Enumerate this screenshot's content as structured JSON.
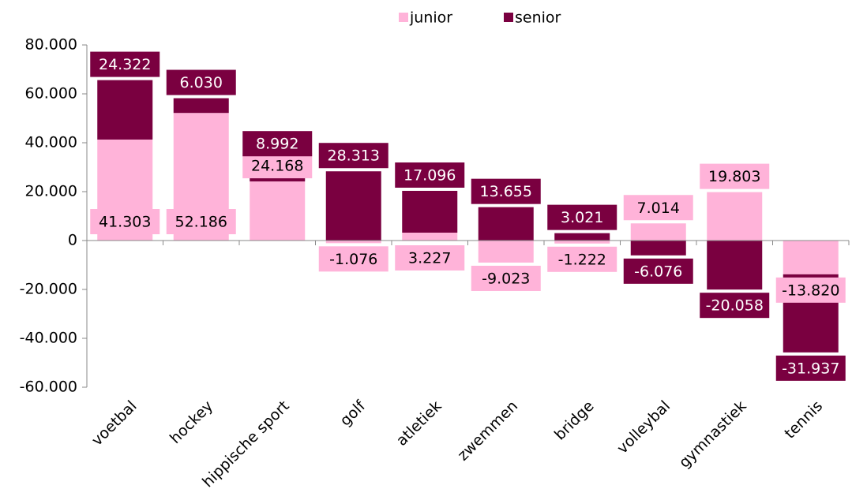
{
  "chart_data": {
    "type": "bar",
    "stacked": true,
    "categories": [
      "voetbal",
      "hockey",
      "hippische sport",
      "golf",
      "atletiek",
      "zwemmen",
      "bridge",
      "volleybal",
      "gymnastiek",
      "tennis"
    ],
    "series": [
      {
        "name": "junior",
        "color": "#ffb3d9",
        "values": [
          41303,
          52186,
          24168,
          -1076,
          3227,
          -9023,
          -1222,
          7014,
          19803,
          -13820
        ],
        "value_labels": [
          "41.303",
          "52.186",
          "24.168",
          "-1.076",
          "3.227",
          "-9.023",
          "-1.222",
          "7.014",
          "19.803",
          "-13.820"
        ]
      },
      {
        "name": "senior",
        "color": "#7a0040",
        "values": [
          24322,
          6030,
          8992,
          28313,
          17096,
          13655,
          3021,
          -6076,
          -20058,
          -31937
        ],
        "value_labels": [
          "24.322",
          "6.030",
          "8.992",
          "28.313",
          "17.096",
          "13.655",
          "3.021",
          "-6.076",
          "-20.058",
          "-31.937"
        ]
      }
    ],
    "ylim": [
      -60000,
      80000
    ],
    "yticks": [
      {
        "value": -60000,
        "label": "-60.000"
      },
      {
        "value": -40000,
        "label": "-40.000"
      },
      {
        "value": -20000,
        "label": "-20.000"
      },
      0,
      {
        "value": 20000,
        "label": "20.000"
      },
      {
        "value": 40000,
        "label": "40.000"
      },
      {
        "value": 60000,
        "label": "60.000"
      },
      {
        "value": 80000,
        "label": "80.000"
      }
    ],
    "legend": "top",
    "grid": false
  }
}
